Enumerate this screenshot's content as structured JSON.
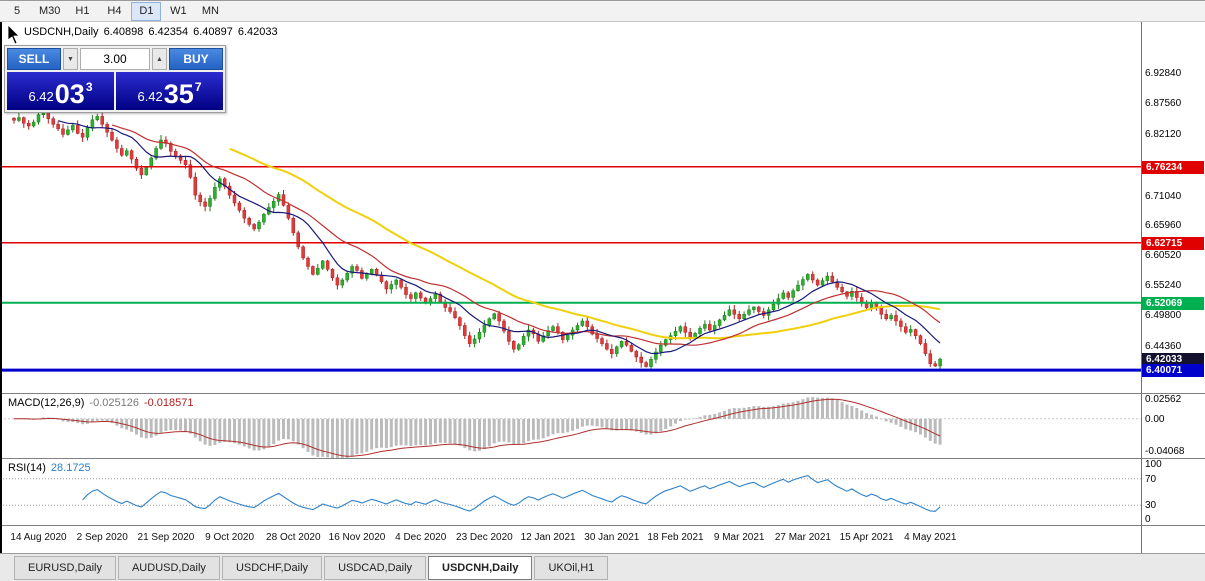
{
  "toolbar": {
    "timeframes": [
      {
        "label": "5",
        "active": false
      },
      {
        "label": "M30",
        "active": false
      },
      {
        "label": "H1",
        "active": false
      },
      {
        "label": "H4",
        "active": false
      },
      {
        "label": "D1",
        "active": true
      },
      {
        "label": "W1",
        "active": false
      },
      {
        "label": "MN",
        "active": false
      }
    ]
  },
  "title": {
    "symbol": "USDCNH,Daily",
    "open": "6.40898",
    "high": "6.42354",
    "low": "6.40897",
    "close": "6.42033"
  },
  "trade": {
    "sell_label": "SELL",
    "buy_label": "BUY",
    "volume": "3.00",
    "volume_down_glyph": "▼",
    "volume_up_glyph": "▲",
    "sell_price": {
      "base": "6.42",
      "pips": "03",
      "pt": "3"
    },
    "buy_price": {
      "base": "6.42",
      "pips": "35",
      "pt": "7"
    }
  },
  "chart": {
    "price_axis_ticks": [
      "6.92840",
      "6.87560",
      "6.82120",
      "6.71040",
      "6.65960",
      "6.60520",
      "6.55240",
      "6.49800",
      "6.44360"
    ],
    "levels": [
      {
        "label": "6.76234",
        "value": 6.76234,
        "color": "#e00000",
        "line_width": 1.5
      },
      {
        "label": "6.62715",
        "value": 6.62715,
        "color": "#e00000",
        "line_width": 1.5
      },
      {
        "label": "6.52069",
        "value": 6.52069,
        "color": "#00b050",
        "line_width": 2
      },
      {
        "label": "6.42033",
        "value": 6.42033,
        "color": "#12122e",
        "line_width": 0
      },
      {
        "label": "6.40071",
        "value": 6.40071,
        "color": "#0000cc",
        "line_width": 3
      }
    ],
    "closes": [
      6.845,
      6.85,
      6.84,
      6.835,
      6.842,
      6.855,
      6.862,
      6.848,
      6.838,
      6.83,
      6.82,
      6.828,
      6.836,
      6.822,
      6.815,
      6.832,
      6.846,
      6.852,
      6.838,
      6.824,
      6.81,
      6.795,
      6.783,
      6.791,
      6.776,
      6.76,
      6.748,
      6.762,
      6.778,
      6.795,
      6.81,
      6.804,
      6.79,
      6.782,
      6.774,
      6.766,
      6.744,
      6.712,
      6.7,
      6.692,
      6.706,
      6.726,
      6.741,
      6.728,
      6.712,
      6.698,
      6.685,
      6.671,
      6.66,
      6.652,
      6.664,
      6.678,
      6.69,
      6.701,
      6.713,
      6.694,
      6.671,
      6.645,
      6.62,
      6.6,
      6.585,
      6.571,
      6.582,
      6.595,
      6.58,
      6.565,
      6.552,
      6.561,
      6.573,
      6.585,
      6.578,
      6.564,
      6.572,
      6.58,
      6.57,
      6.558,
      6.545,
      6.553,
      6.561,
      6.548,
      6.535,
      6.528,
      6.538,
      6.529,
      6.52,
      6.528,
      6.536,
      6.522,
      6.512,
      6.505,
      6.494,
      6.48,
      6.462,
      6.448,
      6.456,
      6.468,
      6.481,
      6.492,
      6.501,
      6.488,
      6.47,
      6.452,
      6.438,
      6.446,
      6.461,
      6.472,
      6.465,
      6.452,
      6.462,
      6.471,
      6.478,
      6.468,
      6.455,
      6.463,
      6.472,
      6.48,
      6.488,
      6.478,
      6.465,
      6.457,
      6.448,
      6.438,
      6.43,
      6.442,
      6.452,
      6.445,
      6.434,
      6.424,
      6.414,
      6.407,
      6.42,
      6.433,
      6.445,
      6.455,
      6.462,
      6.47,
      6.478,
      6.468,
      6.458,
      6.466,
      6.475,
      6.482,
      6.472,
      6.48,
      6.49,
      6.498,
      6.508,
      6.5,
      6.492,
      6.5,
      6.508,
      6.513,
      6.505,
      6.498,
      6.508,
      6.518,
      6.528,
      6.538,
      6.53,
      6.542,
      6.552,
      6.562,
      6.571,
      6.561,
      6.552,
      6.56,
      6.568,
      6.558,
      6.548,
      6.54,
      6.532,
      6.541,
      6.53,
      6.52,
      6.512,
      6.52,
      6.513,
      6.5,
      6.492,
      6.498,
      6.488,
      6.478,
      6.468,
      6.473,
      6.462,
      6.448,
      6.43,
      6.412,
      6.408,
      6.4203
    ],
    "colors": {
      "up": "#2bb12b",
      "up_dark": "#1b7d1b",
      "down": "#e23b3b",
      "down_dark": "#ad2222",
      "ma_blue": "#19197a",
      "ma_red": "#c03030",
      "ma_yellow": "#f0d00a"
    }
  },
  "macd": {
    "label": "MACD(12,26,9)",
    "value": "-0.025126",
    "signal_value": "-0.018571",
    "axis": [
      {
        "label": "0.02562",
        "value": 0.02562
      },
      {
        "label": "0.00",
        "value": 0
      },
      {
        "label": "-0.04068",
        "value": -0.04068
      }
    ],
    "colors": {
      "hist": "#bbbbbb",
      "signal": "#b03030"
    }
  },
  "rsi": {
    "label": "RSI(14)",
    "value": "28.1725",
    "axis": [
      {
        "label": "100",
        "value": 100
      },
      {
        "label": "70",
        "value": 70
      },
      {
        "label": "30",
        "value": 30
      },
      {
        "label": "0",
        "value": 0
      }
    ],
    "guide_levels": [
      70,
      30
    ],
    "color": "#2f82c9"
  },
  "dates": [
    "14 Aug 2020",
    "2 Sep 2020",
    "21 Sep 2020",
    "9 Oct 2020",
    "28 Oct 2020",
    "16 Nov 2020",
    "4 Dec 2020",
    "23 Dec 2020",
    "12 Jan 2021",
    "30 Jan 2021",
    "18 Feb 2021",
    "9 Mar 2021",
    "27 Mar 2021",
    "15 Apr 2021",
    "4 May 2021"
  ],
  "tabs": [
    {
      "label": "EURUSD,Daily",
      "active": false
    },
    {
      "label": "AUDUSD,Daily",
      "active": false
    },
    {
      "label": "USDCHF,Daily",
      "active": false
    },
    {
      "label": "USDCAD,Daily",
      "active": false
    },
    {
      "label": "USDCNH,Daily",
      "active": true
    },
    {
      "label": "UKOil,H1",
      "active": false
    }
  ]
}
